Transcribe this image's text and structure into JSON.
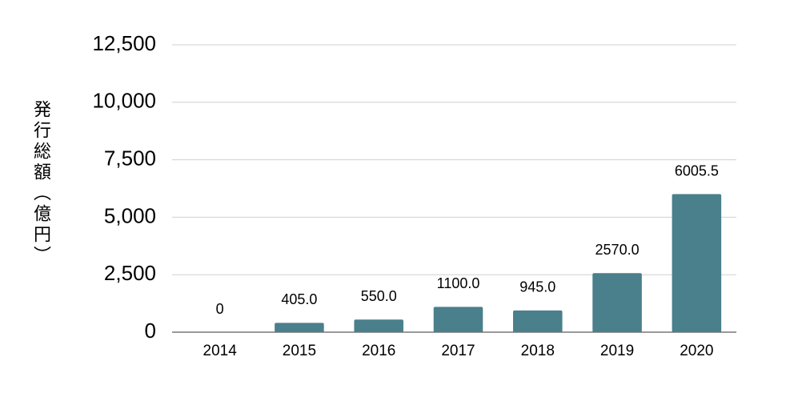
{
  "chart_data": {
    "type": "bar",
    "y_label": "発行総額（億円）",
    "categories": [
      "2014",
      "2015",
      "2016",
      "2017",
      "2018",
      "2019",
      "2020"
    ],
    "values": [
      0,
      405,
      550,
      1100,
      945,
      2570,
      6005.5
    ],
    "value_labels": [
      "0",
      "405.0",
      "550.0",
      "1100.0",
      "945.0",
      "2570.0",
      "6005.5"
    ],
    "color": "#4a7f8c",
    "ylim": [
      0,
      12500
    ],
    "yticks": [
      0,
      {
        "value": 2500,
        "label": "2,500"
      },
      {
        "value": 5000,
        "label": "5,000"
      },
      {
        "value": 7500,
        "label": "7,500"
      },
      {
        "value": 10000,
        "label": "10,000"
      },
      {
        "value": 12500,
        "label": "12,500"
      }
    ],
    "grid": true
  }
}
